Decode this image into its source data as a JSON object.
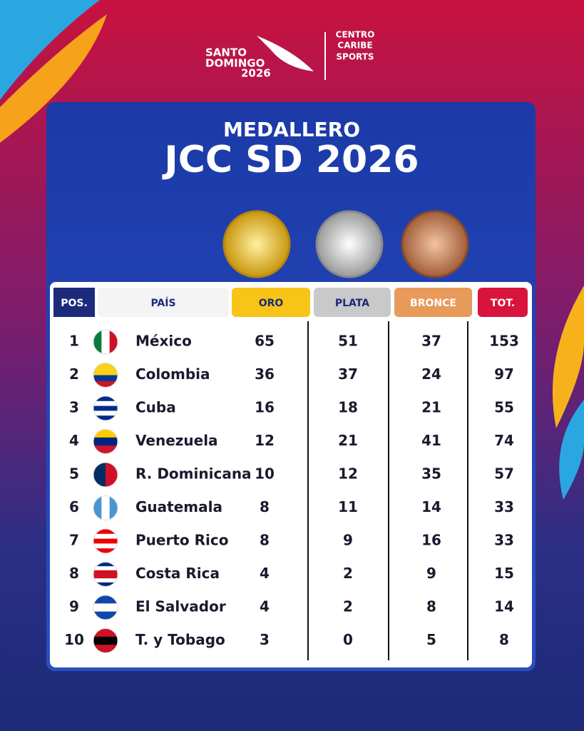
{
  "logo": {
    "line1": "SANTO",
    "line2": "DOMINGO",
    "line3": "2026",
    "partner1": "CENTRO",
    "partner2": "CARIBE",
    "partner3": "SPORTS"
  },
  "header": {
    "subtitle": "MEDALLERO",
    "title": "JCC SD 2026"
  },
  "table": {
    "columns": [
      "POS.",
      "PAÍS",
      "ORO",
      "PLATA",
      "BRONCE",
      "TOT."
    ],
    "rows": [
      [
        "1",
        "México",
        "65",
        "51",
        "37",
        "153"
      ],
      [
        "2",
        "Colombia",
        "36",
        "37",
        "24",
        "97"
      ],
      [
        "3",
        "Cuba",
        "16",
        "18",
        "21",
        "55"
      ],
      [
        "4",
        "Venezuela",
        "12",
        "21",
        "41",
        "74"
      ],
      [
        "5",
        "R. Dominicana",
        "10",
        "12",
        "35",
        "57"
      ],
      [
        "6",
        "Guatemala",
        "8",
        "11",
        "14",
        "33"
      ],
      [
        "7",
        "Puerto Rico",
        "8",
        "9",
        "16",
        "33"
      ],
      [
        "8",
        "Costa Rica",
        "4",
        "2",
        "9",
        "15"
      ],
      [
        "9",
        "El Salvador",
        "4",
        "2",
        "8",
        "14"
      ],
      [
        "10",
        "T. y Tobago",
        "3",
        "0",
        "5",
        "8"
      ]
    ]
  }
}
